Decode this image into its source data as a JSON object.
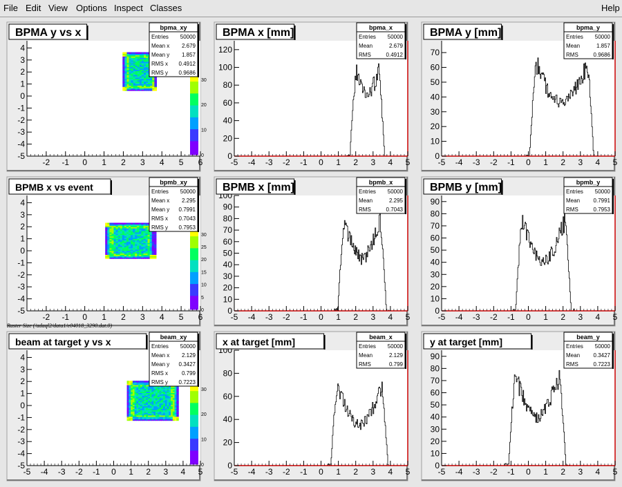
{
  "menu": [
    "File",
    "Edit",
    "View",
    "Options",
    "Inspect",
    "Classes"
  ],
  "help": "Help",
  "footer_note": "Raster Size (/adaql2/data1/e04018_3290.dat.0)",
  "colors": {
    "hist_line": "#000000",
    "axis": "#000000",
    "frame_right": "#cc0000",
    "palette": [
      "#7f00ff",
      "#3a3aff",
      "#00a0ff",
      "#00e0c0",
      "#00ff60",
      "#a0ff00",
      "#ffff00",
      "#ff8000",
      "#ff0000"
    ]
  },
  "chart_data": [
    {
      "id": "bpma_xy",
      "type": "heatmap",
      "title": "BPMA y vs x",
      "stats": {
        "name": "bpma_xy",
        "rows": [
          [
            "Entries",
            "50000"
          ],
          [
            "Mean x",
            "2.679"
          ],
          [
            "Mean y",
            "1.857"
          ],
          [
            "RMS x",
            "0.4912"
          ],
          [
            "RMS y",
            "0.9686"
          ]
        ]
      },
      "xlim": [
        -3,
        6
      ],
      "ylim": [
        -5,
        4.6
      ],
      "xticks": [
        "-2",
        "-1",
        "0",
        "1",
        "2",
        "3",
        "4",
        "5",
        "6"
      ],
      "yticks": [
        "-5",
        "-4",
        "-3",
        "-2",
        "-1",
        "0",
        "1",
        "2",
        "3",
        "4"
      ],
      "blob": {
        "x": [
          2.0,
          3.6
        ],
        "y": [
          0.5,
          3.5
        ]
      },
      "zticks": [
        "0",
        "10",
        "20",
        "30"
      ]
    },
    {
      "id": "bpma_x",
      "type": "bar",
      "title": "BPMA x [mm]",
      "stats": {
        "name": "bpma_x",
        "rows": [
          [
            "Entries",
            "50000"
          ],
          [
            "Mean",
            "2.679"
          ],
          [
            "RMS",
            "0.4912"
          ]
        ]
      },
      "xlim": [
        -5,
        5
      ],
      "ylim": [
        0,
        130
      ],
      "xticks": [
        "-5",
        "-4",
        "-3",
        "-2",
        "-1",
        "0",
        "1",
        "2",
        "3",
        "4",
        "5"
      ],
      "yticks": [
        "0",
        "20",
        "40",
        "60",
        "80",
        "100",
        "120"
      ],
      "shape": {
        "lo": 1.8,
        "hi": 3.5,
        "peak": 110,
        "valley": 70
      }
    },
    {
      "id": "bpma_y",
      "type": "bar",
      "title": "BPMA y [mm]",
      "stats": {
        "name": "bpma_y",
        "rows": [
          [
            "Entries",
            "50000"
          ],
          [
            "Mean",
            "1.857"
          ],
          [
            "RMS",
            "0.9686"
          ]
        ]
      },
      "xlim": [
        -5,
        5
      ],
      "ylim": [
        0,
        78
      ],
      "xticks": [
        "-5",
        "-4",
        "-3",
        "-2",
        "-1",
        "0",
        "1",
        "2",
        "3",
        "4",
        "5"
      ],
      "yticks": [
        "0",
        "10",
        "20",
        "30",
        "40",
        "50",
        "60",
        "70"
      ],
      "shape": {
        "lo": 0.2,
        "hi": 3.6,
        "peak": 70,
        "valley": 35
      }
    },
    {
      "id": "bpmb_xy",
      "type": "heatmap",
      "title": "BPMB x vs event",
      "stats": {
        "name": "bpmb_xy",
        "rows": [
          [
            "Entries",
            "50000"
          ],
          [
            "Mean x",
            "2.295"
          ],
          [
            "Mean y",
            "0.7991"
          ],
          [
            "RMS x",
            "0.7043"
          ],
          [
            "RMS y",
            "0.7953"
          ]
        ]
      },
      "xlim": [
        -3,
        6
      ],
      "ylim": [
        -5,
        4.6
      ],
      "xticks": [
        "-2",
        "-1",
        "0",
        "1",
        "2",
        "3",
        "4",
        "5",
        "6"
      ],
      "yticks": [
        "-5",
        "-4",
        "-3",
        "-2",
        "-1",
        "0",
        "1",
        "2",
        "3",
        "4"
      ],
      "blob": {
        "x": [
          1.1,
          3.5
        ],
        "y": [
          -0.6,
          2.2
        ]
      },
      "zticks": [
        "0",
        "5",
        "10",
        "15",
        "20",
        "25",
        "30"
      ]
    },
    {
      "id": "bpmb_x",
      "type": "bar",
      "title": "BPMB x [mm]",
      "stats": {
        "name": "bpmb_x",
        "rows": [
          [
            "Entries",
            "50000"
          ],
          [
            "Mean",
            "2.295"
          ],
          [
            "RMS",
            "0.7043"
          ]
        ]
      },
      "xlim": [
        -5,
        5
      ],
      "ylim": [
        0,
        100
      ],
      "xticks": [
        "-5",
        "-4",
        "-3",
        "-2",
        "-1",
        "0",
        "1",
        "2",
        "3",
        "4",
        "5"
      ],
      "yticks": [
        "0",
        "10",
        "20",
        "30",
        "40",
        "50",
        "60",
        "70",
        "80",
        "90",
        "100"
      ],
      "shape": {
        "lo": 1.1,
        "hi": 3.6,
        "peak": 90,
        "valley": 45
      }
    },
    {
      "id": "bpmb_y",
      "type": "bar",
      "title": "BPMB y [mm]",
      "stats": {
        "name": "bpmb_y",
        "rows": [
          [
            "Entries",
            "50000"
          ],
          [
            "Mean",
            "0.7991"
          ],
          [
            "RMS",
            "0.7953"
          ]
        ]
      },
      "xlim": [
        -5,
        5
      ],
      "ylim": [
        0,
        95
      ],
      "xticks": [
        "-5",
        "-4",
        "-3",
        "-2",
        "-1",
        "0",
        "1",
        "2",
        "3",
        "4",
        "5"
      ],
      "yticks": [
        "0",
        "10",
        "20",
        "30",
        "40",
        "50",
        "60",
        "70",
        "80",
        "90"
      ],
      "shape": {
        "lo": -0.6,
        "hi": 2.3,
        "peak": 85,
        "valley": 40
      }
    },
    {
      "id": "beam_xy",
      "type": "heatmap",
      "title": "beam at target y vs x",
      "stats": {
        "name": "beam_xy",
        "rows": [
          [
            "Entries",
            "50000"
          ],
          [
            "Mean x",
            "2.129"
          ],
          [
            "Mean y",
            "0.3427"
          ],
          [
            "RMS x",
            "0.799"
          ],
          [
            "RMS y",
            "0.7223"
          ]
        ]
      },
      "xlim": [
        -5,
        5
      ],
      "ylim": [
        -5,
        4.6
      ],
      "xticks": [
        "-5",
        "-4",
        "-3",
        "-2",
        "-1",
        "0",
        "1",
        "2",
        "3",
        "4",
        "5"
      ],
      "yticks": [
        "-5",
        "-4",
        "-3",
        "-2",
        "-1",
        "0",
        "1",
        "2",
        "3",
        "4"
      ],
      "blob": {
        "x": [
          0.8,
          3.6
        ],
        "y": [
          -1.2,
          1.9
        ]
      },
      "zticks": [
        "0",
        "10",
        "20",
        "30"
      ]
    },
    {
      "id": "beam_x",
      "type": "bar",
      "title": "x at target [mm]",
      "stats": {
        "name": "beam_x",
        "rows": [
          [
            "Entries",
            "50000"
          ],
          [
            "Mean",
            "2.129"
          ],
          [
            "RMS",
            "0.799"
          ]
        ]
      },
      "xlim": [
        -5,
        5
      ],
      "ylim": [
        0,
        100
      ],
      "xticks": [
        "-5",
        "-4",
        "-3",
        "-2",
        "-1",
        "0",
        "1",
        "2",
        "3",
        "4",
        "5"
      ],
      "yticks": [
        "0",
        "20",
        "40",
        "60",
        "80",
        "100"
      ],
      "shape": {
        "lo": 0.7,
        "hi": 3.7,
        "peak": 78,
        "valley": 35
      }
    },
    {
      "id": "beam_y",
      "type": "bar",
      "title": "y at target [mm]",
      "stats": {
        "name": "beam_y",
        "rows": [
          [
            "Entries",
            "50000"
          ],
          [
            "Mean",
            "0.3427"
          ],
          [
            "RMS",
            "0.7223"
          ]
        ]
      },
      "xlim": [
        -5,
        5
      ],
      "ylim": [
        0,
        95
      ],
      "xticks": [
        "-5",
        "-4",
        "-3",
        "-2",
        "-1",
        "0",
        "1",
        "2",
        "3",
        "4",
        "5"
      ],
      "yticks": [
        "0",
        "10",
        "20",
        "30",
        "40",
        "50",
        "60",
        "70",
        "80",
        "90"
      ],
      "shape": {
        "lo": -1.0,
        "hi": 2.0,
        "peak": 85,
        "valley": 40
      }
    }
  ]
}
